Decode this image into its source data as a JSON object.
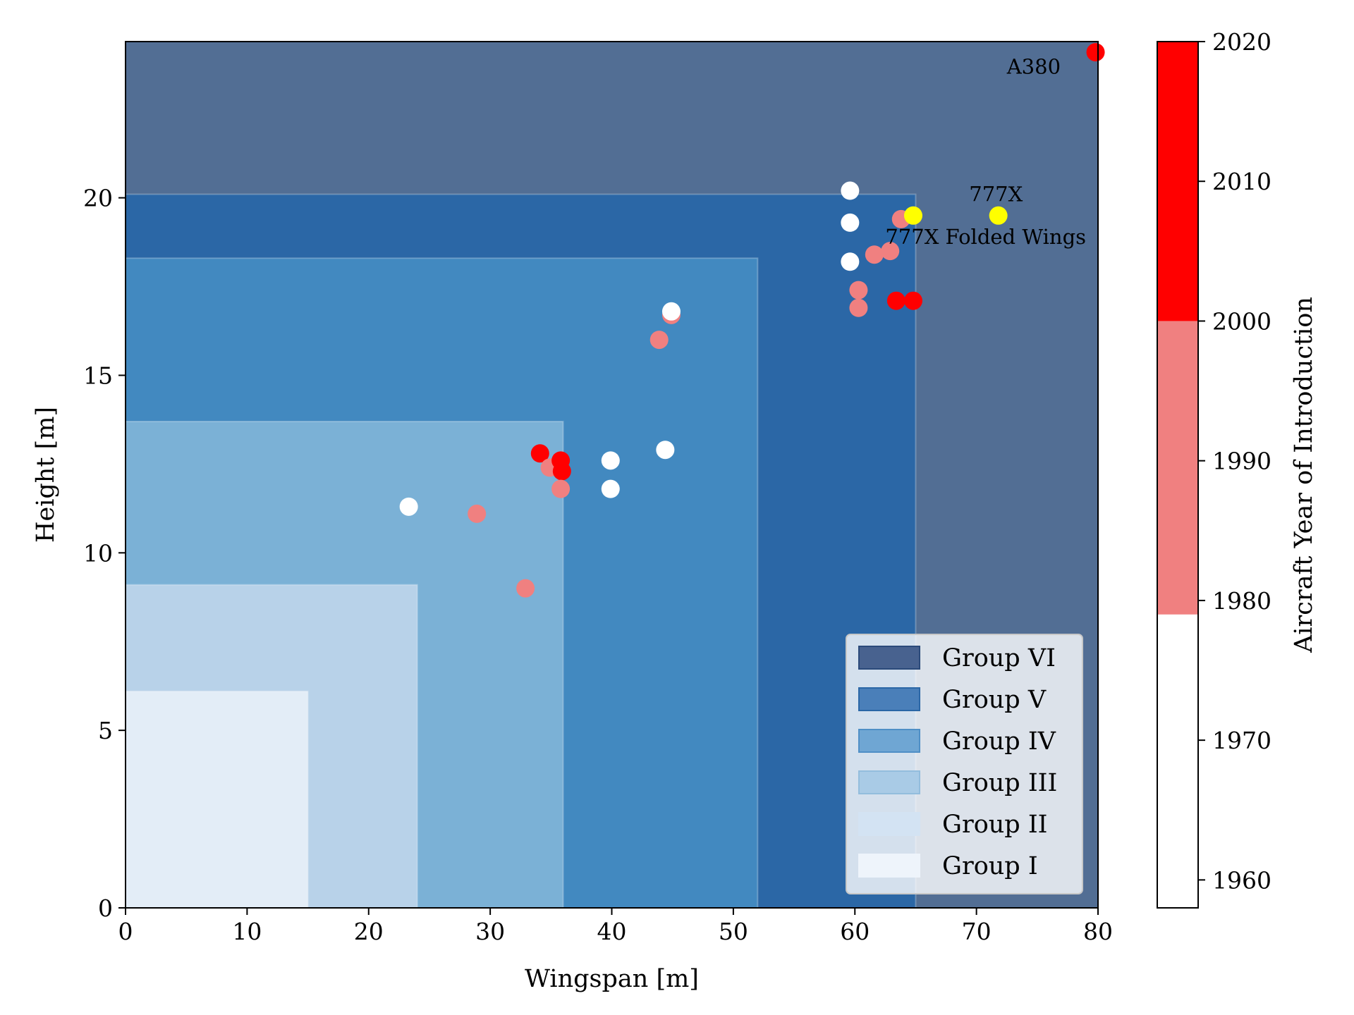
{
  "chart_data": {
    "type": "scatter",
    "xlabel": "Wingspan [m]",
    "ylabel": "Height [m]",
    "xlim": [
      0,
      80
    ],
    "ylim": [
      0,
      24.4
    ],
    "xticks": [
      0,
      10,
      20,
      30,
      40,
      50,
      60,
      70,
      80
    ],
    "yticks": [
      0,
      5,
      10,
      15,
      20
    ],
    "grid": false,
    "legend_placement": "lower-right",
    "regions": [
      {
        "name": "Group VI",
        "x_max": 80,
        "y_max": 24.4,
        "color": "#526e94"
      },
      {
        "name": "Group V",
        "x_max": 65,
        "y_max": 20.1,
        "color": "#2b67a6"
      },
      {
        "name": "Group IV",
        "x_max": 52,
        "y_max": 18.3,
        "color": "#4289c0"
      },
      {
        "name": "Group III",
        "x_max": 36,
        "y_max": 13.7,
        "color": "#7bb1d6"
      },
      {
        "name": "Group II",
        "x_max": 24,
        "y_max": 9.1,
        "color": "#b8d2e9"
      },
      {
        "name": "Group I",
        "x_max": 15,
        "y_max": 6.1,
        "color": "#e3edf7"
      }
    ],
    "legend_swatches": [
      {
        "name": "Group VI",
        "fill": "#48628f",
        "edge": "#2b4a7a"
      },
      {
        "name": "Group V",
        "fill": "#4a7fb9",
        "edge": "#2b67a6"
      },
      {
        "name": "Group IV",
        "fill": "#6fa6d3",
        "edge": "#4f8fc6"
      },
      {
        "name": "Group III",
        "fill": "#a9cbe6",
        "edge": "#93bddd"
      },
      {
        "name": "Group II",
        "fill": "#d3e3f3",
        "edge": "#d3e3f3"
      },
      {
        "name": "Group I",
        "fill": "#eef4fb",
        "edge": "#eef4fb"
      }
    ],
    "points": [
      {
        "x": 23.3,
        "y": 11.3,
        "year": 1970
      },
      {
        "x": 28.9,
        "y": 11.1,
        "year": 1985
      },
      {
        "x": 32.9,
        "y": 9.0,
        "year": 1985
      },
      {
        "x": 34.1,
        "y": 12.8,
        "year": 2005
      },
      {
        "x": 34.9,
        "y": 12.4,
        "year": 1990
      },
      {
        "x": 35.8,
        "y": 12.6,
        "year": 2005
      },
      {
        "x": 35.9,
        "y": 12.3,
        "year": 2010
      },
      {
        "x": 35.8,
        "y": 11.8,
        "year": 1990
      },
      {
        "x": 39.9,
        "y": 12.6,
        "year": 1970
      },
      {
        "x": 39.9,
        "y": 11.8,
        "year": 1970
      },
      {
        "x": 43.9,
        "y": 16.0,
        "year": 1985
      },
      {
        "x": 44.9,
        "y": 16.7,
        "year": 1985
      },
      {
        "x": 44.9,
        "y": 16.8,
        "year": 1970
      },
      {
        "x": 44.4,
        "y": 12.9,
        "year": 1970
      },
      {
        "x": 59.6,
        "y": 20.2,
        "year": 1970
      },
      {
        "x": 59.6,
        "y": 19.3,
        "year": 1970
      },
      {
        "x": 59.6,
        "y": 18.2,
        "year": 1970
      },
      {
        "x": 60.3,
        "y": 17.4,
        "year": 1990
      },
      {
        "x": 60.3,
        "y": 16.9,
        "year": 1990
      },
      {
        "x": 61.6,
        "y": 18.4,
        "year": 1995
      },
      {
        "x": 62.9,
        "y": 18.5,
        "year": 1995
      },
      {
        "x": 63.8,
        "y": 19.4,
        "year": 1995
      },
      {
        "x": 63.4,
        "y": 17.1,
        "year": 2010
      },
      {
        "x": 64.8,
        "y": 17.1,
        "year": 2010
      },
      {
        "x": 64.8,
        "y": 19.5,
        "year": null,
        "color": "#ffff00"
      },
      {
        "x": 71.8,
        "y": 19.5,
        "year": null,
        "color": "#ffff00"
      },
      {
        "x": 79.8,
        "y": 24.1,
        "year": 2007
      }
    ],
    "annotations": [
      {
        "text": "A380",
        "x": 72.5,
        "y": 23.5
      },
      {
        "text": "777X",
        "x": 69.4,
        "y": 19.9
      },
      {
        "text": "777X Folded Wings",
        "x": 62.5,
        "y": 18.7
      }
    ],
    "colorbar": {
      "label": "Aircraft Year of Introduction",
      "range": [
        1958,
        2020
      ],
      "ticks": [
        1960,
        1970,
        1980,
        1990,
        2000,
        2010,
        2020
      ],
      "bands": [
        {
          "from": 1958,
          "to": 1979,
          "color": "#ffffff"
        },
        {
          "from": 1979,
          "to": 2000,
          "color": "#f08080"
        },
        {
          "from": 2000,
          "to": 2020,
          "color": "#ff0000"
        }
      ]
    }
  }
}
